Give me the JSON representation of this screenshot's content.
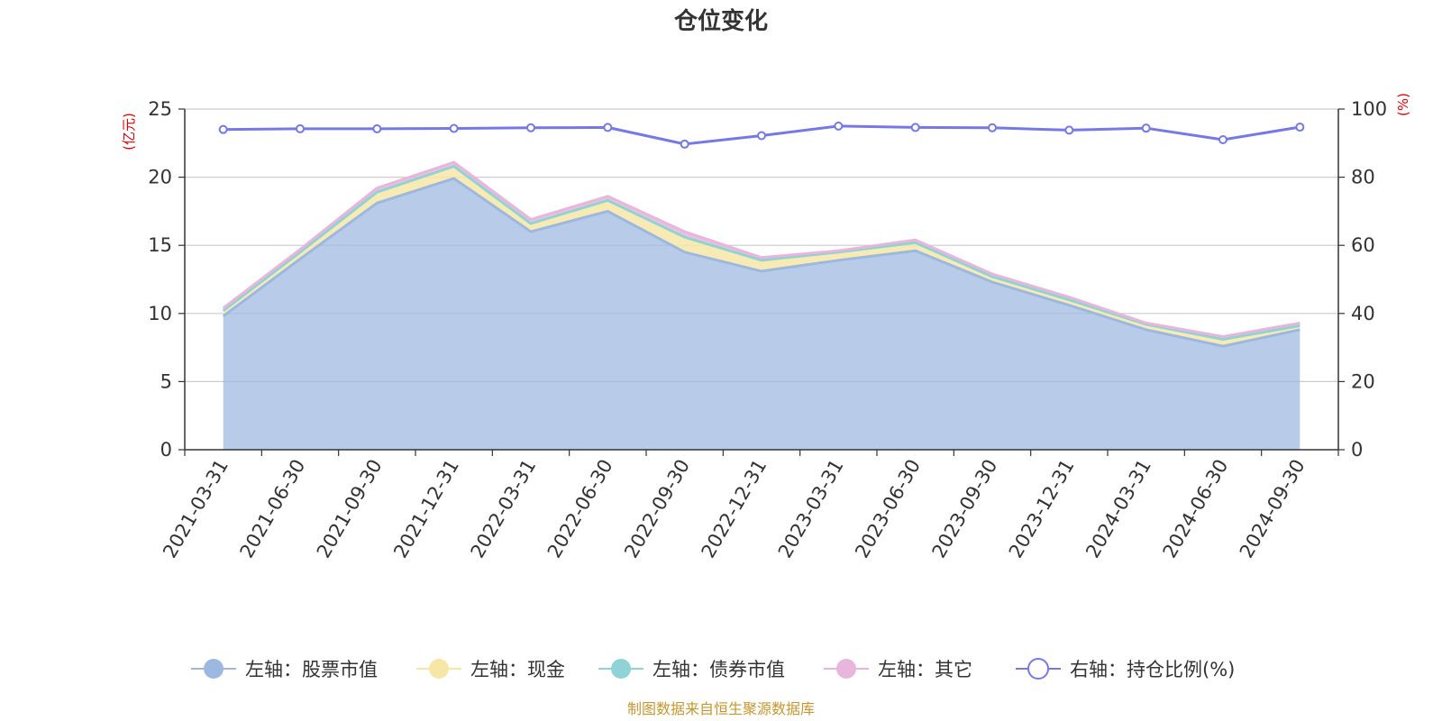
{
  "chart_data": {
    "type": "area",
    "title": "仓位变化",
    "left_axis_unit": "(亿元)",
    "right_axis_unit": "(%)",
    "categories": [
      "2021-03-31",
      "2021-06-30",
      "2021-09-30",
      "2021-12-31",
      "2022-03-31",
      "2022-06-30",
      "2022-09-30",
      "2022-12-31",
      "2023-03-31",
      "2023-06-30",
      "2023-09-30",
      "2023-12-31",
      "2024-03-31",
      "2024-06-30",
      "2024-09-30"
    ],
    "y_left": {
      "min": 0,
      "max": 25,
      "ticks": [
        0,
        5,
        10,
        15,
        20,
        25
      ]
    },
    "y_right": {
      "min": 0,
      "max": 100,
      "ticks": [
        0,
        20,
        40,
        60,
        80,
        100
      ]
    },
    "grid": true,
    "legend_position": "bottom",
    "series": [
      {
        "name": "左轴：股票市值",
        "axis": "left",
        "stack": true,
        "color": "#9db8e0",
        "values": [
          9.8,
          14.0,
          18.1,
          19.9,
          16.0,
          17.5,
          14.5,
          13.1,
          13.9,
          14.6,
          12.3,
          10.6,
          8.8,
          7.6,
          8.8
        ]
      },
      {
        "name": "左轴：现金",
        "axis": "left",
        "stack": true,
        "color": "#f7e6a6",
        "values": [
          0.4,
          0.5,
          0.8,
          0.9,
          0.6,
          0.8,
          1.1,
          0.8,
          0.6,
          0.6,
          0.4,
          0.4,
          0.4,
          0.5,
          0.3
        ]
      },
      {
        "name": "左轴：债券市值",
        "axis": "left",
        "stack": true,
        "color": "#8fd3d6",
        "values": [
          0,
          0,
          0,
          0,
          0,
          0,
          0,
          0,
          0,
          0,
          0,
          0,
          0,
          0,
          0
        ]
      },
      {
        "name": "左轴：其它",
        "axis": "left",
        "stack": true,
        "color": "#e8b6dc",
        "values": [
          0.2,
          0.2,
          0.3,
          0.3,
          0.3,
          0.3,
          0.4,
          0.2,
          0.1,
          0.2,
          0.2,
          0.2,
          0.1,
          0.2,
          0.2
        ]
      },
      {
        "name": "右轴：持仓比例(%)",
        "axis": "right",
        "type": "line",
        "color": "#7579e7",
        "values": [
          94.0,
          94.2,
          94.2,
          94.3,
          94.5,
          94.6,
          89.7,
          92.2,
          95.0,
          94.6,
          94.5,
          93.8,
          94.4,
          91.0,
          94.7
        ]
      }
    ],
    "source_note": "制图数据来自恒生聚源数据库"
  }
}
